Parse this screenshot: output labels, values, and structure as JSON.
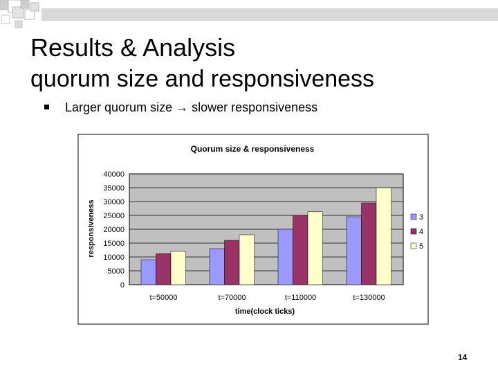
{
  "slide": {
    "title": "Results & Analysis",
    "subtitle": "quorum size and responsiveness",
    "bullet": "Larger quorum size → slower responsiveness",
    "page_number": "14"
  },
  "chart_data": {
    "type": "bar",
    "title": "Quorum size & responsiveness",
    "xlabel": "time(clock ticks)",
    "ylabel": "responsiveness",
    "categories": [
      "t=50000",
      "t=70000",
      "t=110000",
      "t=130000"
    ],
    "series": [
      {
        "name": "3",
        "values": [
          9000,
          13000,
          20000,
          24500
        ]
      },
      {
        "name": "4",
        "values": [
          11200,
          16000,
          25000,
          29500
        ]
      },
      {
        "name": "5",
        "values": [
          12000,
          18000,
          26300,
          35000
        ]
      }
    ],
    "ylim": [
      0,
      40000
    ],
    "yticks": [
      0,
      5000,
      10000,
      15000,
      20000,
      25000,
      30000,
      35000,
      40000
    ],
    "grid": true,
    "legend": "right",
    "colors": {
      "series": [
        "#9999ff",
        "#993366",
        "#ffffcc"
      ],
      "plot_background": "#c0c0c0",
      "gridline": "#000000",
      "outline": "#000000"
    }
  }
}
